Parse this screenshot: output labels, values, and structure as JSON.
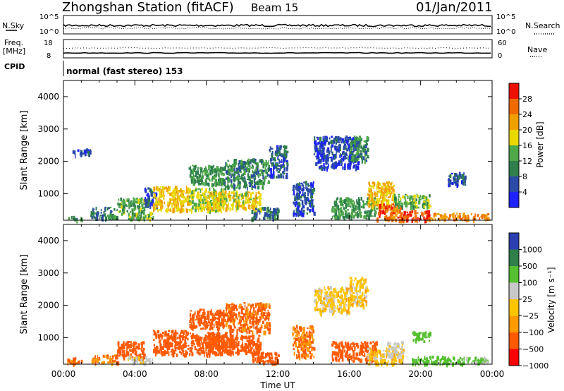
{
  "header": {
    "station": "Zhongshan Station (fitACF)",
    "beam": "Beam 15",
    "date": "01/Jan/2011"
  },
  "strips": {
    "nsky_label": "N.Sky",
    "nsearch_label": "N.Search",
    "nsky_ticks": [
      "10^5",
      "10^0"
    ],
    "nsearch_ticks": [
      "10^5",
      "10^0"
    ],
    "freq_label_1": "Freq.",
    "freq_label_2": "[MHz]",
    "freq_ticks": [
      "18",
      "8"
    ],
    "nave_label": "Nave",
    "nave_ticks": [
      "60",
      "0"
    ],
    "cpid_label": "CPID",
    "cpid_text": "normal (fast stereo) 153"
  },
  "colors": {
    "power": [
      "#1e22ff",
      "#2a4aa6",
      "#2f7f4c",
      "#4fa84a",
      "#e8d800",
      "#f0a000",
      "#f06a00",
      "#ee1000"
    ],
    "velocity": [
      "#ff0000",
      "#ff5a00",
      "#ff9a00",
      "#ffc400",
      "#c8c8c8",
      "#55c030",
      "#2e7f4a",
      "#2b3fb0"
    ]
  },
  "chart_data": [
    {
      "type": "heatmap",
      "name": "power",
      "ylabel": "Slant Range [km]",
      "ylim": [
        180,
        4500
      ],
      "yticks": [
        "1000",
        "2000",
        "3000",
        "4000"
      ],
      "xlim_hours": [
        0,
        24
      ],
      "xticks": [
        "00:00",
        "04:00",
        "08:00",
        "12:00",
        "16:00",
        "20:00",
        "00:00"
      ],
      "colorbar_label": "Power [dB]",
      "colorbar_ticks": [
        "4",
        "8",
        "12",
        "16",
        "20",
        "24",
        "28"
      ],
      "scale_min": 0,
      "scale_max": 32,
      "cells": [
        {
          "t": [
            0.2,
            1.0
          ],
          "r": [
            200,
            320
          ],
          "v": 10
        },
        {
          "t": [
            0.5,
            1.5
          ],
          "r": [
            2200,
            2400
          ],
          "v": 5
        },
        {
          "t": [
            1.5,
            3.0
          ],
          "r": [
            250,
            600
          ],
          "v": 9
        },
        {
          "t": [
            3.0,
            4.5
          ],
          "r": [
            400,
            900
          ],
          "v": 13
        },
        {
          "t": [
            3.5,
            5.0
          ],
          "r": [
            250,
            450
          ],
          "v": 15
        },
        {
          "t": [
            4.5,
            5.2
          ],
          "r": [
            600,
            1200
          ],
          "v": 6
        },
        {
          "t": [
            5.0,
            7.0
          ],
          "r": [
            500,
            1250
          ],
          "v": 20
        },
        {
          "t": [
            7.0,
            9.0
          ],
          "r": [
            500,
            1200
          ],
          "v": 16
        },
        {
          "t": [
            8.0,
            11.0
          ],
          "r": [
            550,
            1100
          ],
          "v": 19
        },
        {
          "t": [
            7.0,
            9.0
          ],
          "r": [
            1300,
            1900
          ],
          "v": 12
        },
        {
          "t": [
            9.0,
            11.5
          ],
          "r": [
            1200,
            2100
          ],
          "v": 10
        },
        {
          "t": [
            10.5,
            12.0
          ],
          "r": [
            250,
            600
          ],
          "v": 9
        },
        {
          "t": [
            11.5,
            12.5
          ],
          "r": [
            1500,
            2500
          ],
          "v": 7
        },
        {
          "t": [
            12.8,
            14.0
          ],
          "r": [
            400,
            1400
          ],
          "v": 6
        },
        {
          "t": [
            14.0,
            16.5
          ],
          "r": [
            1800,
            2800
          ],
          "v": 5
        },
        {
          "t": [
            16.0,
            17.0
          ],
          "r": [
            2000,
            2800
          ],
          "v": 11
        },
        {
          "t": [
            15.0,
            17.5
          ],
          "r": [
            300,
            900
          ],
          "v": 12
        },
        {
          "t": [
            17.0,
            18.5
          ],
          "r": [
            600,
            1400
          ],
          "v": 20
        },
        {
          "t": [
            17.5,
            19.0
          ],
          "r": [
            200,
            700
          ],
          "v": 26
        },
        {
          "t": [
            19.0,
            20.5
          ],
          "r": [
            200,
            500
          ],
          "v": 28
        },
        {
          "t": [
            20.5,
            23.8
          ],
          "r": [
            220,
            420
          ],
          "v": 24
        },
        {
          "t": [
            18.5,
            20.5
          ],
          "r": [
            600,
            1000
          ],
          "v": 14
        },
        {
          "t": [
            21.5,
            22.5
          ],
          "r": [
            1300,
            1700
          ],
          "v": 6
        }
      ]
    },
    {
      "type": "heatmap",
      "name": "velocity",
      "ylabel": "Slant Range [km]",
      "ylim": [
        180,
        4500
      ],
      "yticks": [
        "1000",
        "2000",
        "3000",
        "4000"
      ],
      "xlim_hours": [
        0,
        24
      ],
      "xticks": [
        "00:00",
        "04:00",
        "08:00",
        "12:00",
        "16:00",
        "20:00",
        "00:00"
      ],
      "xlabel": "Time UT",
      "colorbar_label": "Velocity [m s⁻¹]",
      "colorbar_ticks": [
        "1000",
        "500",
        "100",
        "25",
        "−25",
        "−100",
        "−500",
        "−1000"
      ],
      "cells": [
        {
          "t": [
            0.2,
            1.0
          ],
          "r": [
            200,
            400
          ],
          "v": -100
        },
        {
          "t": [
            1.5,
            3.0
          ],
          "r": [
            250,
            500
          ],
          "v": -100
        },
        {
          "t": [
            3.0,
            4.5
          ],
          "r": [
            400,
            900
          ],
          "v": -200
        },
        {
          "t": [
            3.5,
            5.0
          ],
          "r": [
            250,
            450
          ],
          "v": 50
        },
        {
          "t": [
            5.0,
            7.0
          ],
          "r": [
            500,
            1250
          ],
          "v": -300
        },
        {
          "t": [
            7.0,
            9.5
          ],
          "r": [
            500,
            1200
          ],
          "v": -400
        },
        {
          "t": [
            8.0,
            11.0
          ],
          "r": [
            550,
            1100
          ],
          "v": -200
        },
        {
          "t": [
            7.0,
            9.0
          ],
          "r": [
            1300,
            1900
          ],
          "v": -150
        },
        {
          "t": [
            9.0,
            11.5
          ],
          "r": [
            1200,
            2100
          ],
          "v": -120
        },
        {
          "t": [
            10.5,
            12.0
          ],
          "r": [
            250,
            600
          ],
          "v": -200
        },
        {
          "t": [
            12.8,
            14.0
          ],
          "r": [
            400,
            1400
          ],
          "v": -100
        },
        {
          "t": [
            14.0,
            16.0
          ],
          "r": [
            1800,
            2600
          ],
          "v": 0
        },
        {
          "t": [
            16.0,
            17.0
          ],
          "r": [
            2000,
            2900
          ],
          "v": 0
        },
        {
          "t": [
            15.0,
            17.5
          ],
          "r": [
            300,
            900
          ],
          "v": -150
        },
        {
          "t": [
            17.0,
            19.0
          ],
          "r": [
            200,
            700
          ],
          "v": 0
        },
        {
          "t": [
            18.0,
            19.0
          ],
          "r": [
            400,
            900
          ],
          "v": 50
        },
        {
          "t": [
            19.5,
            21.5
          ],
          "r": [
            200,
            450
          ],
          "v": 200
        },
        {
          "t": [
            21.5,
            23.8
          ],
          "r": [
            220,
            420
          ],
          "v": 120
        },
        {
          "t": [
            19.5,
            20.5
          ],
          "r": [
            900,
            1200
          ],
          "v": 200
        }
      ]
    }
  ]
}
